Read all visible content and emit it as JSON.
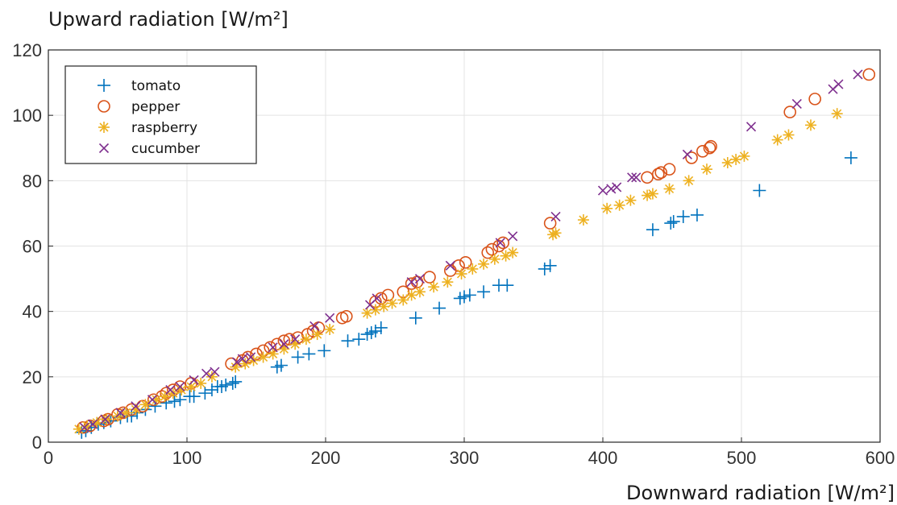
{
  "chart_data": {
    "type": "scatter",
    "ylabel": "Upward radiation [W/m²]",
    "xlabel": "Downward radiation [W/m²]",
    "xlim": [
      0,
      600
    ],
    "ylim": [
      0,
      120
    ],
    "x_ticks": [
      "0",
      "100",
      "200",
      "300",
      "400",
      "500",
      "600"
    ],
    "y_ticks": [
      "0",
      "20",
      "40",
      "60",
      "80",
      "100",
      "120"
    ],
    "grid": true,
    "legend_position": "top-left",
    "series": [
      {
        "name": "tomato",
        "marker": "plus",
        "color": "#0072BD",
        "points": [
          [
            24,
            3
          ],
          [
            27,
            3.5
          ],
          [
            31,
            4.5
          ],
          [
            36,
            5.5
          ],
          [
            40,
            6
          ],
          [
            45,
            6.5
          ],
          [
            52,
            7.5
          ],
          [
            57,
            8
          ],
          [
            60,
            8
          ],
          [
            64,
            9
          ],
          [
            70,
            10
          ],
          [
            77,
            11
          ],
          [
            85,
            12
          ],
          [
            91,
            12.5
          ],
          [
            95,
            13
          ],
          [
            102,
            14
          ],
          [
            105,
            14
          ],
          [
            113,
            15
          ],
          [
            118,
            16
          ],
          [
            122,
            17
          ],
          [
            125,
            17
          ],
          [
            128,
            17.5
          ],
          [
            133,
            18
          ],
          [
            135,
            18.5
          ],
          [
            165,
            23
          ],
          [
            168,
            23.5
          ],
          [
            180,
            26
          ],
          [
            188,
            27
          ],
          [
            199,
            28
          ],
          [
            216,
            31
          ],
          [
            224,
            31.5
          ],
          [
            230,
            33
          ],
          [
            233,
            33.5
          ],
          [
            236,
            34
          ],
          [
            240,
            35
          ],
          [
            265,
            38
          ],
          [
            282,
            41
          ],
          [
            297,
            44
          ],
          [
            300,
            44.5
          ],
          [
            304,
            45
          ],
          [
            314,
            46
          ],
          [
            325,
            48
          ],
          [
            331,
            48
          ],
          [
            358,
            53
          ],
          [
            362,
            54
          ],
          [
            436,
            65
          ],
          [
            449,
            67
          ],
          [
            451,
            67.5
          ],
          [
            458,
            69
          ],
          [
            468,
            69.5
          ],
          [
            513,
            77
          ],
          [
            579,
            87
          ]
        ]
      },
      {
        "name": "pepper",
        "marker": "circle",
        "color": "#D95319",
        "points": [
          [
            25,
            4.5
          ],
          [
            30,
            5
          ],
          [
            40,
            6.5
          ],
          [
            43,
            7
          ],
          [
            50,
            8.5
          ],
          [
            54,
            9
          ],
          [
            60,
            10
          ],
          [
            68,
            11
          ],
          [
            76,
            13
          ],
          [
            82,
            14
          ],
          [
            85,
            15
          ],
          [
            90,
            16
          ],
          [
            95,
            17
          ],
          [
            103,
            18
          ],
          [
            132,
            24
          ],
          [
            140,
            25
          ],
          [
            144,
            26
          ],
          [
            150,
            27
          ],
          [
            155,
            28
          ],
          [
            160,
            29
          ],
          [
            165,
            30
          ],
          [
            170,
            31
          ],
          [
            174,
            31.5
          ],
          [
            180,
            32
          ],
          [
            187,
            33
          ],
          [
            191,
            34
          ],
          [
            195,
            35
          ],
          [
            212,
            38
          ],
          [
            215,
            38.5
          ],
          [
            236,
            43
          ],
          [
            240,
            44
          ],
          [
            245,
            45
          ],
          [
            256,
            46
          ],
          [
            262,
            48.5
          ],
          [
            266,
            49
          ],
          [
            275,
            50.5
          ],
          [
            290,
            52.5
          ],
          [
            296,
            54
          ],
          [
            301,
            55
          ],
          [
            317,
            58
          ],
          [
            320,
            59
          ],
          [
            325,
            60
          ],
          [
            328,
            61
          ],
          [
            362,
            67
          ],
          [
            432,
            81
          ],
          [
            440,
            82
          ],
          [
            442,
            82.5
          ],
          [
            448,
            83.5
          ],
          [
            464,
            87
          ],
          [
            472,
            89
          ],
          [
            477,
            90
          ],
          [
            478,
            90.5
          ],
          [
            535,
            101
          ],
          [
            553,
            105
          ],
          [
            592,
            112.5
          ]
        ]
      },
      {
        "name": "raspberry",
        "marker": "asterisk",
        "color": "#EDB120",
        "points": [
          [
            22,
            4
          ],
          [
            28,
            5
          ],
          [
            35,
            6
          ],
          [
            42,
            7
          ],
          [
            50,
            8
          ],
          [
            56,
            9
          ],
          [
            63,
            10
          ],
          [
            70,
            11.5
          ],
          [
            78,
            13
          ],
          [
            84,
            14
          ],
          [
            90,
            15
          ],
          [
            96,
            16
          ],
          [
            103,
            17
          ],
          [
            110,
            18
          ],
          [
            118,
            20
          ],
          [
            135,
            23
          ],
          [
            142,
            24
          ],
          [
            148,
            25
          ],
          [
            155,
            26
          ],
          [
            162,
            27
          ],
          [
            170,
            28.5
          ],
          [
            178,
            30
          ],
          [
            186,
            31.5
          ],
          [
            194,
            33
          ],
          [
            203,
            34.5
          ],
          [
            230,
            39.5
          ],
          [
            236,
            40.5
          ],
          [
            242,
            41.5
          ],
          [
            248,
            42.5
          ],
          [
            256,
            43.5
          ],
          [
            262,
            45
          ],
          [
            268,
            46
          ],
          [
            278,
            47.5
          ],
          [
            288,
            49
          ],
          [
            298,
            51.5
          ],
          [
            306,
            53
          ],
          [
            314,
            54.5
          ],
          [
            322,
            56
          ],
          [
            330,
            57
          ],
          [
            335,
            58
          ],
          [
            364,
            63.5
          ],
          [
            366,
            64
          ],
          [
            386,
            68
          ],
          [
            403,
            71.5
          ],
          [
            412,
            72.5
          ],
          [
            420,
            74
          ],
          [
            432,
            75.5
          ],
          [
            436,
            76
          ],
          [
            448,
            77.5
          ],
          [
            462,
            80
          ],
          [
            475,
            83.5
          ],
          [
            490,
            85.5
          ],
          [
            496,
            86.5
          ],
          [
            502,
            87.5
          ],
          [
            526,
            92.5
          ],
          [
            534,
            94
          ],
          [
            550,
            97
          ],
          [
            569,
            100.5
          ]
        ]
      },
      {
        "name": "cucumber",
        "marker": "cross",
        "color": "#7E2F8E",
        "points": [
          [
            26,
            4.5
          ],
          [
            32,
            5.5
          ],
          [
            41,
            7
          ],
          [
            52,
            9
          ],
          [
            63,
            11
          ],
          [
            75,
            13
          ],
          [
            88,
            16
          ],
          [
            95,
            17
          ],
          [
            105,
            19
          ],
          [
            114,
            21
          ],
          [
            120,
            21.5
          ],
          [
            136,
            24.5
          ],
          [
            140,
            25.5
          ],
          [
            146,
            26
          ],
          [
            162,
            29
          ],
          [
            170,
            30
          ],
          [
            178,
            31.5
          ],
          [
            192,
            35.5
          ],
          [
            203,
            38
          ],
          [
            232,
            42
          ],
          [
            237,
            44
          ],
          [
            262,
            49
          ],
          [
            268,
            50
          ],
          [
            290,
            54
          ],
          [
            326,
            61
          ],
          [
            335,
            63
          ],
          [
            366,
            69
          ],
          [
            400,
            77
          ],
          [
            406,
            77.5
          ],
          [
            410,
            78
          ],
          [
            421,
            81
          ],
          [
            424,
            81
          ],
          [
            461,
            88
          ],
          [
            507,
            96.5
          ],
          [
            540,
            103.5
          ],
          [
            566,
            108
          ],
          [
            570,
            109.5
          ],
          [
            584,
            112.5
          ]
        ]
      }
    ]
  }
}
